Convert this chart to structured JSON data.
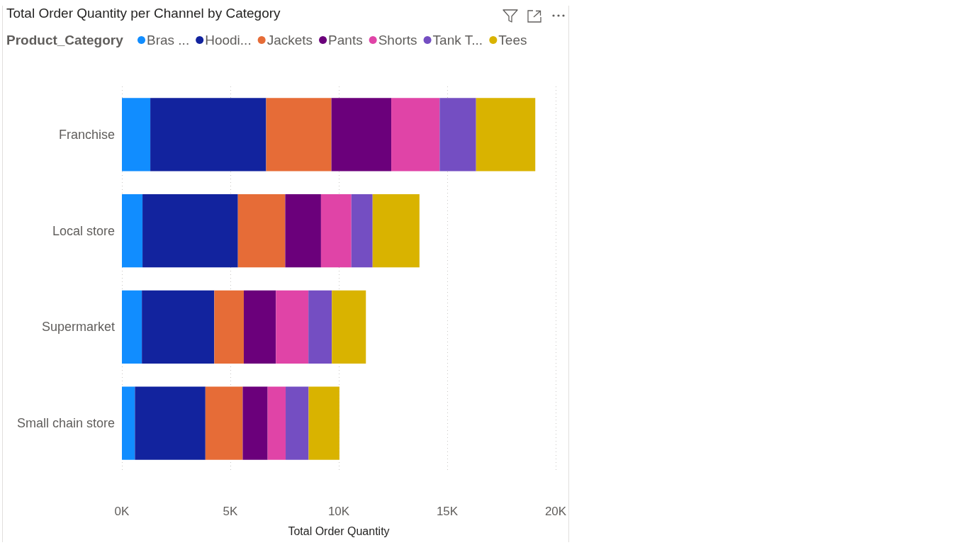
{
  "chart_data": {
    "type": "bar",
    "orientation": "horizontal",
    "stacked": true,
    "title": "Total Order Quantity per Channel by Category",
    "xlabel": "Total Order Quantity",
    "legend_title": "Product_Category",
    "legend": "top left",
    "grid": "x",
    "categories": [
      "Franchise",
      "Local store",
      "Supermarket",
      "Small chain store"
    ],
    "xlim": [
      0,
      20000
    ],
    "xticks": [
      {
        "value": 0,
        "label": "0K"
      },
      {
        "value": 5000,
        "label": "5K"
      },
      {
        "value": 10000,
        "label": "10K"
      },
      {
        "value": 15000,
        "label": "15K"
      },
      {
        "value": 20000,
        "label": "20K"
      }
    ],
    "series": [
      {
        "name": "Bras ...",
        "color": "#118dff",
        "values": [
          1310,
          950,
          920,
          600
        ]
      },
      {
        "name": "Hoodi...",
        "color": "#12239e",
        "values": [
          5340,
          4400,
          3340,
          3250
        ]
      },
      {
        "name": "Jackets",
        "color": "#e66c37",
        "values": [
          3010,
          2180,
          1360,
          1720
        ]
      },
      {
        "name": "Pants",
        "color": "#6b007b",
        "values": [
          2760,
          1650,
          1480,
          1150
        ]
      },
      {
        "name": "Shorts",
        "color": "#e044a7",
        "values": [
          2230,
          1400,
          1500,
          830
        ]
      },
      {
        "name": "Tank T...",
        "color": "#744ec2",
        "values": [
          1680,
          980,
          1080,
          1060
        ]
      },
      {
        "name": "Tees",
        "color": "#d9b300",
        "values": [
          2730,
          2160,
          1570,
          1420
        ]
      }
    ]
  }
}
